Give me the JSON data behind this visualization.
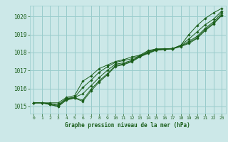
{
  "bg_color": "#cce8e8",
  "grid_color": "#99cccc",
  "line_color": "#1a5e1a",
  "marker_color": "#1a5e1a",
  "text_color": "#1a5e1a",
  "xlabel": "Graphe pression niveau de la mer (hPa)",
  "ylim": [
    1014.6,
    1020.6
  ],
  "xlim": [
    -0.5,
    23.5
  ],
  "yticks": [
    1015,
    1016,
    1017,
    1018,
    1019,
    1020
  ],
  "xticks": [
    0,
    1,
    2,
    3,
    4,
    5,
    6,
    7,
    8,
    9,
    10,
    11,
    12,
    13,
    14,
    15,
    16,
    17,
    18,
    19,
    20,
    21,
    22,
    23
  ],
  "series": [
    [
      1015.2,
      1015.2,
      1015.2,
      1015.2,
      1015.5,
      1015.6,
      1016.4,
      1016.7,
      1017.1,
      1017.3,
      1017.5,
      1017.6,
      1017.75,
      1017.85,
      1018.1,
      1018.2,
      1018.2,
      1018.2,
      1018.4,
      1019.0,
      1019.5,
      1019.9,
      1020.2,
      1020.45
    ],
    [
      1015.2,
      1015.2,
      1015.15,
      1015.1,
      1015.45,
      1015.5,
      1016.05,
      1016.45,
      1016.9,
      1017.2,
      1017.45,
      1017.55,
      1017.65,
      1017.82,
      1018.05,
      1018.18,
      1018.2,
      1018.22,
      1018.4,
      1018.75,
      1019.15,
      1019.55,
      1019.85,
      1020.3
    ],
    [
      1015.2,
      1015.2,
      1015.15,
      1015.05,
      1015.42,
      1015.5,
      1015.7,
      1016.15,
      1016.6,
      1017.0,
      1017.35,
      1017.42,
      1017.56,
      1017.8,
      1018.0,
      1018.16,
      1018.2,
      1018.22,
      1018.37,
      1018.62,
      1018.9,
      1019.35,
      1019.7,
      1020.2
    ],
    [
      1015.2,
      1015.2,
      1015.1,
      1015.0,
      1015.38,
      1015.48,
      1015.35,
      1015.95,
      1016.42,
      1016.82,
      1017.28,
      1017.36,
      1017.52,
      1017.78,
      1017.98,
      1018.14,
      1018.18,
      1018.2,
      1018.35,
      1018.55,
      1018.83,
      1019.28,
      1019.62,
      1020.1
    ],
    [
      1015.2,
      1015.2,
      1015.1,
      1015.0,
      1015.35,
      1015.46,
      1015.28,
      1015.85,
      1016.35,
      1016.75,
      1017.22,
      1017.32,
      1017.48,
      1017.75,
      1017.95,
      1018.12,
      1018.16,
      1018.2,
      1018.33,
      1018.5,
      1018.78,
      1019.22,
      1019.58,
      1020.05
    ]
  ]
}
